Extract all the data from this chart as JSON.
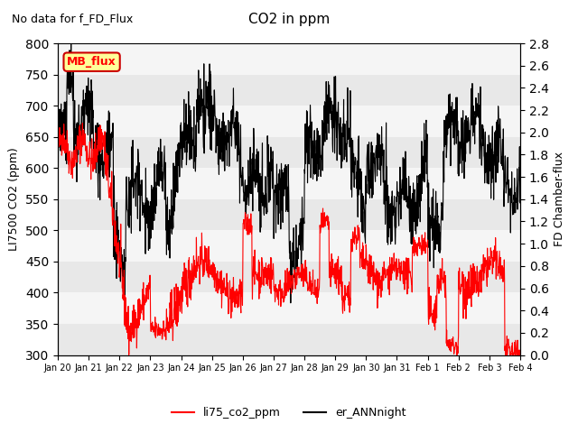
{
  "title": "CO2 in ppm",
  "subtitle": "No data for f_FD_Flux",
  "ylabel_left": "LI7500 CO2 (ppm)",
  "ylabel_right": "FD Chamber-flux",
  "ylim_left": [
    300,
    800
  ],
  "ylim_right": [
    0.0,
    2.8
  ],
  "yticks_left": [
    300,
    350,
    400,
    450,
    500,
    550,
    600,
    650,
    700,
    750,
    800
  ],
  "yticks_right": [
    0.0,
    0.2,
    0.4,
    0.6,
    0.8,
    1.0,
    1.2,
    1.4,
    1.6,
    1.8,
    2.0,
    2.2,
    2.4,
    2.6,
    2.8
  ],
  "color_red": "#FF0000",
  "color_black": "#000000",
  "color_bg_dark": "#E8E8E8",
  "color_bg_light": "#F5F5F5",
  "legend_label_red": "li75_co2_ppm",
  "legend_label_black": "er_ANNnight",
  "annotation_box": "MB_flux",
  "annotation_box_facecolor": "#FFFF99",
  "annotation_box_edgecolor": "#CC0000",
  "tick_positions": [
    0,
    1,
    2,
    3,
    4,
    5,
    6,
    7,
    8,
    9,
    10,
    11,
    12,
    13,
    14,
    15
  ],
  "tick_labels": [
    "Jan 20",
    "Jan 21",
    "Jan 22",
    "Jan 23",
    "Jan 24",
    "Jan 25",
    "Jan 26",
    "Jan 27",
    "Jan 28",
    "Jan 29",
    "Jan 30",
    "Jan 31",
    "Feb 1",
    "Feb 2",
    "Feb 3",
    "Feb 4"
  ],
  "linewidth": 0.8
}
